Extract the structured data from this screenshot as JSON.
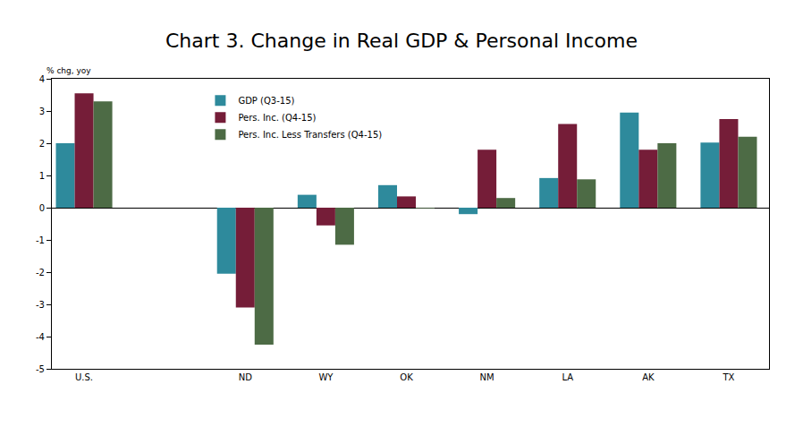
{
  "chart_data": {
    "type": "bar",
    "title": "Chart 3. Change in Real GDP & Personal Income",
    "y_label": "% chg, yoy",
    "categories": [
      "U.S.",
      null,
      "ND",
      "WY",
      "OK",
      "NM",
      "LA",
      "AK",
      "TX"
    ],
    "series": [
      {
        "name": "GDP (Q3-15)",
        "color": "#2e8a9c",
        "values": [
          2.0,
          null,
          -2.05,
          0.4,
          0.7,
          -0.2,
          0.92,
          2.95,
          2.02
        ]
      },
      {
        "name": "Pers. Inc. (Q4-15)",
        "color": "#751d38",
        "values": [
          3.55,
          null,
          -3.1,
          -0.55,
          0.35,
          1.8,
          2.6,
          1.8,
          2.75
        ]
      },
      {
        "name": "Pers. Inc. Less Transfers (Q4-15)",
        "color": "#4d6b45",
        "values": [
          3.3,
          null,
          -4.25,
          -1.15,
          -0.02,
          0.3,
          0.88,
          2.0,
          2.2
        ]
      }
    ],
    "ylim": [
      -5,
      4
    ],
    "yticks": [
      -5,
      -4,
      -3,
      -2,
      -1,
      0,
      1,
      2,
      3,
      4
    ],
    "grid": false,
    "legend": "top-left"
  }
}
